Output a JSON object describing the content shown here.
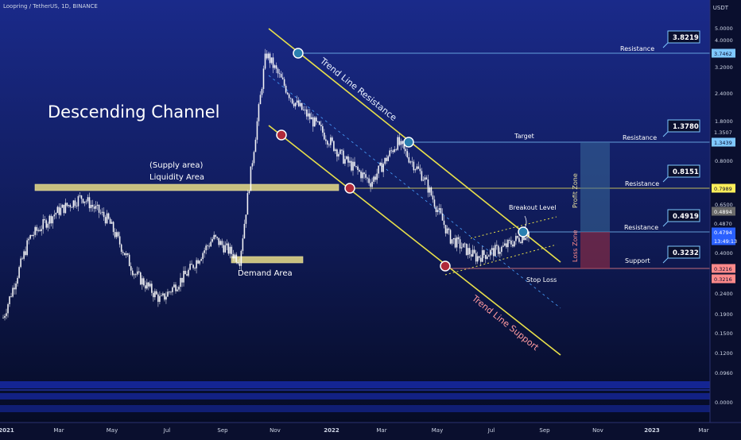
{
  "header": {
    "symbol": "Loopring / TetherUS, 1D, BINANCE"
  },
  "price_unit": "USDT",
  "colors": {
    "background_top": "#1a2a8a",
    "background_bottom": "#050a20",
    "channel_line": "#e8e04a",
    "zone_box": "#c8c080",
    "profit_zone": "#3a6a9a",
    "loss_zone": "#9a2f45",
    "level_line": "#7fc8ff",
    "support_line": "#ff8a8a",
    "candle": "#ffffff"
  },
  "annotations": {
    "title": "Descending Channel",
    "supply_1": "(Supply area)",
    "supply_2": "Liquidity Area",
    "demand": "Demand Area",
    "tl_resistance": "Trend Line Resistance",
    "tl_support": "Trend Line Support",
    "breakout": "Breakout Level",
    "target": "Target",
    "stop_loss": "Stop Loss",
    "profit_zone": "Profit Zone",
    "loss_zone": "Loss Zone"
  },
  "levels": [
    {
      "name": "Resistance",
      "value": "3.8219"
    },
    {
      "name": "Resistance",
      "value": "1.3780"
    },
    {
      "name": "Resistance",
      "value": "0.8151"
    },
    {
      "name": "Resistance",
      "value": "0.4919"
    },
    {
      "name": "Support",
      "value": "0.3232"
    }
  ],
  "price_axis": [
    "5.0000",
    "4.0000",
    "3.2000",
    "2.4000",
    "1.8000",
    "0.8000",
    "0.6500",
    "0.4000",
    "0.2400",
    "0.1900",
    "0.1500",
    "0.1200",
    "0.0960",
    "0.0000"
  ],
  "price_tags": [
    {
      "label": "3.7462",
      "bg": "#7fc8ff",
      "fg": "#0a0f2e"
    },
    {
      "label": "1.3507",
      "bg": "#0a0f2e",
      "fg": "#cfd6e6"
    },
    {
      "label": "1.3439",
      "bg": "#7fc8ff",
      "fg": "#0a0f2e"
    },
    {
      "label": "0.7989",
      "bg": "#ffef5a",
      "fg": "#0a0f2e"
    },
    {
      "label": "0.4894",
      "bg": "#6b6b6b",
      "fg": "#ffffff"
    },
    {
      "label": "0.4870",
      "bg": "#0a0f2e",
      "fg": "#cfd6e6"
    },
    {
      "label": "0.4794",
      "bg": "#2a60ff",
      "fg": "#ffffff"
    },
    {
      "label": "13:49:13",
      "bg": "#2a60ff",
      "fg": "#ffffff"
    },
    {
      "label": "0.3216",
      "bg": "#ff8a8a",
      "fg": "#0a0f2e"
    },
    {
      "label": "0.3216",
      "bg": "#ff8a8a",
      "fg": "#0a0f2e"
    }
  ],
  "time_axis": [
    "2021",
    "Mar",
    "May",
    "Jul",
    "Sep",
    "Nov",
    "2022",
    "Mar",
    "May",
    "Jul",
    "Sep",
    "Nov",
    "2023",
    "Mar"
  ],
  "chart_data": {
    "type": "line",
    "title": "Loopring / TetherUS, 1D, BINANCE",
    "scale": "log",
    "ylim": [
      0.096,
      5.0
    ],
    "x": [
      "2021-01",
      "2021-02",
      "2021-03",
      "2021-04",
      "2021-05",
      "2021-06",
      "2021-07",
      "2021-08",
      "2021-09",
      "2021-10",
      "2021-11-10",
      "2021-11-20",
      "2021-12",
      "2022-01",
      "2022-02",
      "2022-03",
      "2022-04",
      "2022-05",
      "2022-06",
      "2022-07",
      "2022-08"
    ],
    "series": [
      {
        "values": [
          0.18,
          0.45,
          0.6,
          0.72,
          0.55,
          0.3,
          0.22,
          0.3,
          0.45,
          0.35,
          3.75,
          2.2,
          1.6,
          1.1,
          0.85,
          1.35,
          0.9,
          0.45,
          0.36,
          0.4,
          0.48
        ]
      }
    ],
    "levels": {
      "resistance": [
        3.8219,
        1.378,
        0.8151,
        0.4919
      ],
      "support": 0.3232
    }
  }
}
